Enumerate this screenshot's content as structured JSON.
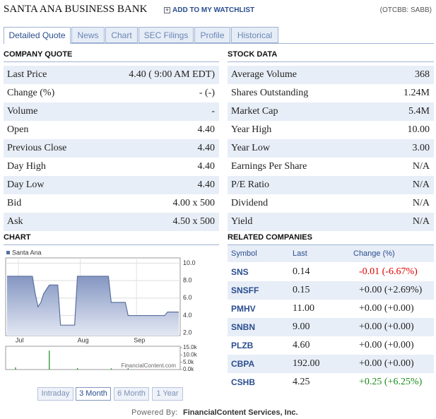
{
  "header": {
    "title": "SANTA ANA BUSINESS BANK",
    "watchlist": "ADD TO MY WATCHLIST",
    "ticker": "(OTCBB: SABB)"
  },
  "tabs": [
    "Detailed Quote",
    "News",
    "Chart",
    "SEC Filings",
    "Profile",
    "Historical"
  ],
  "company_quote": {
    "title": "COMPANY QUOTE",
    "rows": [
      [
        "Last Price",
        "4.40 ( 9:00 AM EDT)"
      ],
      [
        "Change (%)",
        "- (-)"
      ],
      [
        "Volume",
        "-"
      ],
      [
        "Open",
        "4.40"
      ],
      [
        "Previous Close",
        "4.40"
      ],
      [
        "Day High",
        "4.40"
      ],
      [
        "Day Low",
        "4.40"
      ],
      [
        "Bid",
        "4.00 x 500"
      ],
      [
        "Ask",
        "4.50 x 500"
      ]
    ]
  },
  "stock_data": {
    "title": "STOCK DATA",
    "rows": [
      [
        "Average Volume",
        "368"
      ],
      [
        "Shares Outstanding",
        "1.24M"
      ],
      [
        "Market Cap",
        "5.4M"
      ],
      [
        "Year High",
        "10.00"
      ],
      [
        "Year Low",
        "3.00"
      ],
      [
        "Earnings Per Share",
        "N/A"
      ],
      [
        "P/E Ratio",
        "N/A"
      ],
      [
        "Dividend",
        "N/A"
      ],
      [
        "Yield",
        "N/A"
      ]
    ]
  },
  "chart_section": {
    "title": "CHART",
    "watermark": "FinancialContent.com",
    "buttons": [
      "Intraday",
      "3 Month",
      "6 Month",
      "1 Year"
    ]
  },
  "chart_data": [
    {
      "type": "area",
      "legend": "Santa Ana",
      "color": "#5b6f9e",
      "categories": [
        null,
        null,
        null,
        null,
        "Jul",
        null,
        null,
        null,
        null,
        null,
        null,
        null,
        null,
        null,
        null,
        null,
        null,
        null,
        null,
        null,
        null,
        null,
        null,
        null,
        null,
        null,
        "Aug",
        null,
        null,
        null,
        null,
        null,
        null,
        null,
        null,
        null,
        null,
        null,
        null,
        null,
        null,
        null,
        null,
        null,
        null,
        null,
        "Sep",
        null,
        null,
        null,
        null,
        null,
        null,
        null,
        null,
        null,
        null,
        null,
        null,
        null,
        null,
        null
      ],
      "values": [
        8.5,
        8.5,
        8.5,
        8.5,
        8.5,
        8.5,
        8.5,
        8.5,
        8.5,
        8.5,
        6.5,
        5.0,
        5.5,
        6.5,
        7.0,
        7.5,
        7.5,
        7.5,
        7.5,
        2.9,
        2.9,
        2.9,
        2.9,
        2.9,
        2.9,
        8.5,
        8.5,
        8.5,
        8.5,
        8.5,
        8.5,
        8.5,
        8.5,
        8.5,
        8.5,
        8.5,
        8.5,
        5.5,
        5.5,
        5.5,
        5.5,
        5.5,
        5.5,
        4.0,
        4.0,
        4.0,
        4.0,
        4.0,
        4.0,
        4.0,
        4.0,
        4.0,
        4.0,
        4.0,
        4.0,
        4.0,
        4.0,
        4.4,
        4.4,
        4.4,
        4.4,
        4.4
      ],
      "ylim": [
        1.7,
        10.6
      ],
      "yticks": [
        {
          "value": 10,
          "label": "10.0"
        },
        {
          "value": 8,
          "label": "8.0"
        },
        {
          "value": 6,
          "label": "6.0"
        },
        {
          "value": 4,
          "label": "4.0"
        },
        {
          "value": 2,
          "label": "2.0"
        }
      ],
      "grid": true
    },
    {
      "type": "bar",
      "color": "#1a8a1a",
      "values": [
        0,
        0,
        0,
        1500,
        0,
        0,
        0,
        0,
        0,
        0,
        0,
        0,
        0,
        0,
        0,
        13000,
        0,
        0,
        0,
        0,
        0,
        0,
        0,
        0,
        0,
        1000,
        0,
        0,
        0,
        0,
        0,
        0,
        0,
        0,
        0,
        0,
        0,
        800,
        0,
        0,
        0,
        0,
        0,
        900,
        0,
        0,
        0,
        0,
        0,
        0,
        0,
        0,
        0,
        0,
        0,
        0,
        0,
        0,
        0,
        0,
        0,
        0
      ],
      "ylim": [
        0,
        16000
      ],
      "yticks": [
        {
          "value": 15000,
          "label": "15.0k"
        },
        {
          "value": 10000,
          "label": "10.0k"
        },
        {
          "value": 5000,
          "label": "5.0k"
        },
        {
          "value": 0,
          "label": "0.0k"
        }
      ]
    }
  ],
  "related": {
    "title": "RELATED COMPANIES",
    "columns": [
      "Symbol",
      "Last",
      "Change (%)"
    ],
    "rows": [
      {
        "symbol": "SNS",
        "last": "0.14",
        "change": "-0.01 (-6.67%)",
        "color": "#dd0000"
      },
      {
        "symbol": "SNSFF",
        "last": "0.15",
        "change": "+0.00 (+2.69%)",
        "color": "#222222"
      },
      {
        "symbol": "PMHV",
        "last": "11.00",
        "change": "+0.00 (+0.00)",
        "color": "#222222"
      },
      {
        "symbol": "SNBN",
        "last": "9.00",
        "change": "+0.00 (+0.00)",
        "color": "#222222"
      },
      {
        "symbol": "PLZB",
        "last": "4.60",
        "change": "+0.00 (+0.00)",
        "color": "#222222"
      },
      {
        "symbol": "CBPA",
        "last": "192.00",
        "change": "+0.00 (+0.00)",
        "color": "#222222"
      },
      {
        "symbol": "CSHB",
        "last": "4.25",
        "change": "+0.25 (+6.25%)",
        "color": "#1a8a1a"
      }
    ]
  },
  "footer": {
    "prefix": "Powered By:",
    "company": "FinancialContent Services, Inc."
  }
}
